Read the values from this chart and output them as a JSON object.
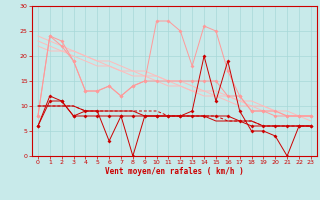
{
  "xlabel": "Vent moyen/en rafales ( km/h )",
  "x": [
    0,
    1,
    2,
    3,
    4,
    5,
    6,
    7,
    8,
    9,
    10,
    11,
    12,
    13,
    14,
    15,
    16,
    17,
    18,
    19,
    20,
    21,
    22,
    23
  ],
  "dark_red_spiky": [
    6,
    12,
    11,
    8,
    9,
    9,
    3,
    8,
    0,
    8,
    8,
    8,
    8,
    9,
    20,
    11,
    19,
    9,
    5,
    5,
    4,
    0,
    6,
    6
  ],
  "dark_red_flat": [
    6,
    11,
    11,
    8,
    8,
    8,
    8,
    8,
    8,
    8,
    8,
    8,
    8,
    8,
    8,
    8,
    8,
    7,
    6,
    6,
    6,
    6,
    6,
    6
  ],
  "light_pink_spiky": [
    8,
    24,
    22,
    19,
    13,
    13,
    14,
    12,
    14,
    15,
    27,
    27,
    25,
    18,
    26,
    25,
    17,
    12,
    9,
    9,
    9,
    8,
    8,
    8
  ],
  "light_pink_flat": [
    8,
    24,
    23,
    19,
    13,
    13,
    14,
    12,
    14,
    15,
    15,
    15,
    15,
    15,
    15,
    15,
    12,
    12,
    9,
    9,
    8,
    8,
    8,
    8
  ],
  "trend_dark_solid": [
    10,
    10,
    10,
    10,
    9,
    9,
    9,
    9,
    9,
    8,
    8,
    8,
    8,
    8,
    8,
    7,
    7,
    7,
    7,
    6,
    6,
    6,
    6,
    6
  ],
  "trend_dark_dashed": [
    10,
    10,
    10,
    10,
    9,
    9,
    9,
    9,
    9,
    9,
    9,
    8,
    8,
    8,
    8,
    8,
    7,
    7,
    7,
    6,
    6,
    6,
    6,
    6
  ],
  "trend_light1": [
    24,
    23,
    22,
    21,
    20,
    19,
    19,
    18,
    17,
    17,
    16,
    15,
    15,
    14,
    13,
    13,
    12,
    11,
    11,
    10,
    9,
    9,
    8,
    8
  ],
  "trend_light2": [
    23,
    22,
    21,
    21,
    20,
    19,
    18,
    17,
    17,
    16,
    16,
    15,
    14,
    13,
    13,
    12,
    12,
    11,
    10,
    10,
    9,
    8,
    8,
    8
  ],
  "trend_light3": [
    22,
    21,
    21,
    20,
    19,
    18,
    18,
    17,
    16,
    16,
    15,
    14,
    14,
    13,
    12,
    12,
    11,
    10,
    10,
    9,
    9,
    8,
    8,
    7
  ],
  "bg_color": "#c8eaea",
  "grid_color": "#a8d8d8",
  "dark_red_color": "#cc0000",
  "light_pink_color": "#ff9999",
  "trend_light_color": "#ffbbbb",
  "ylim": [
    0,
    30
  ],
  "xlim": [
    -0.5,
    23.5
  ],
  "yticks": [
    0,
    5,
    10,
    15,
    20,
    25,
    30
  ],
  "xticks": [
    0,
    1,
    2,
    3,
    4,
    5,
    6,
    7,
    8,
    9,
    10,
    11,
    12,
    13,
    14,
    15,
    16,
    17,
    18,
    19,
    20,
    21,
    22,
    23
  ],
  "figsize": [
    3.2,
    2.0
  ],
  "dpi": 100
}
